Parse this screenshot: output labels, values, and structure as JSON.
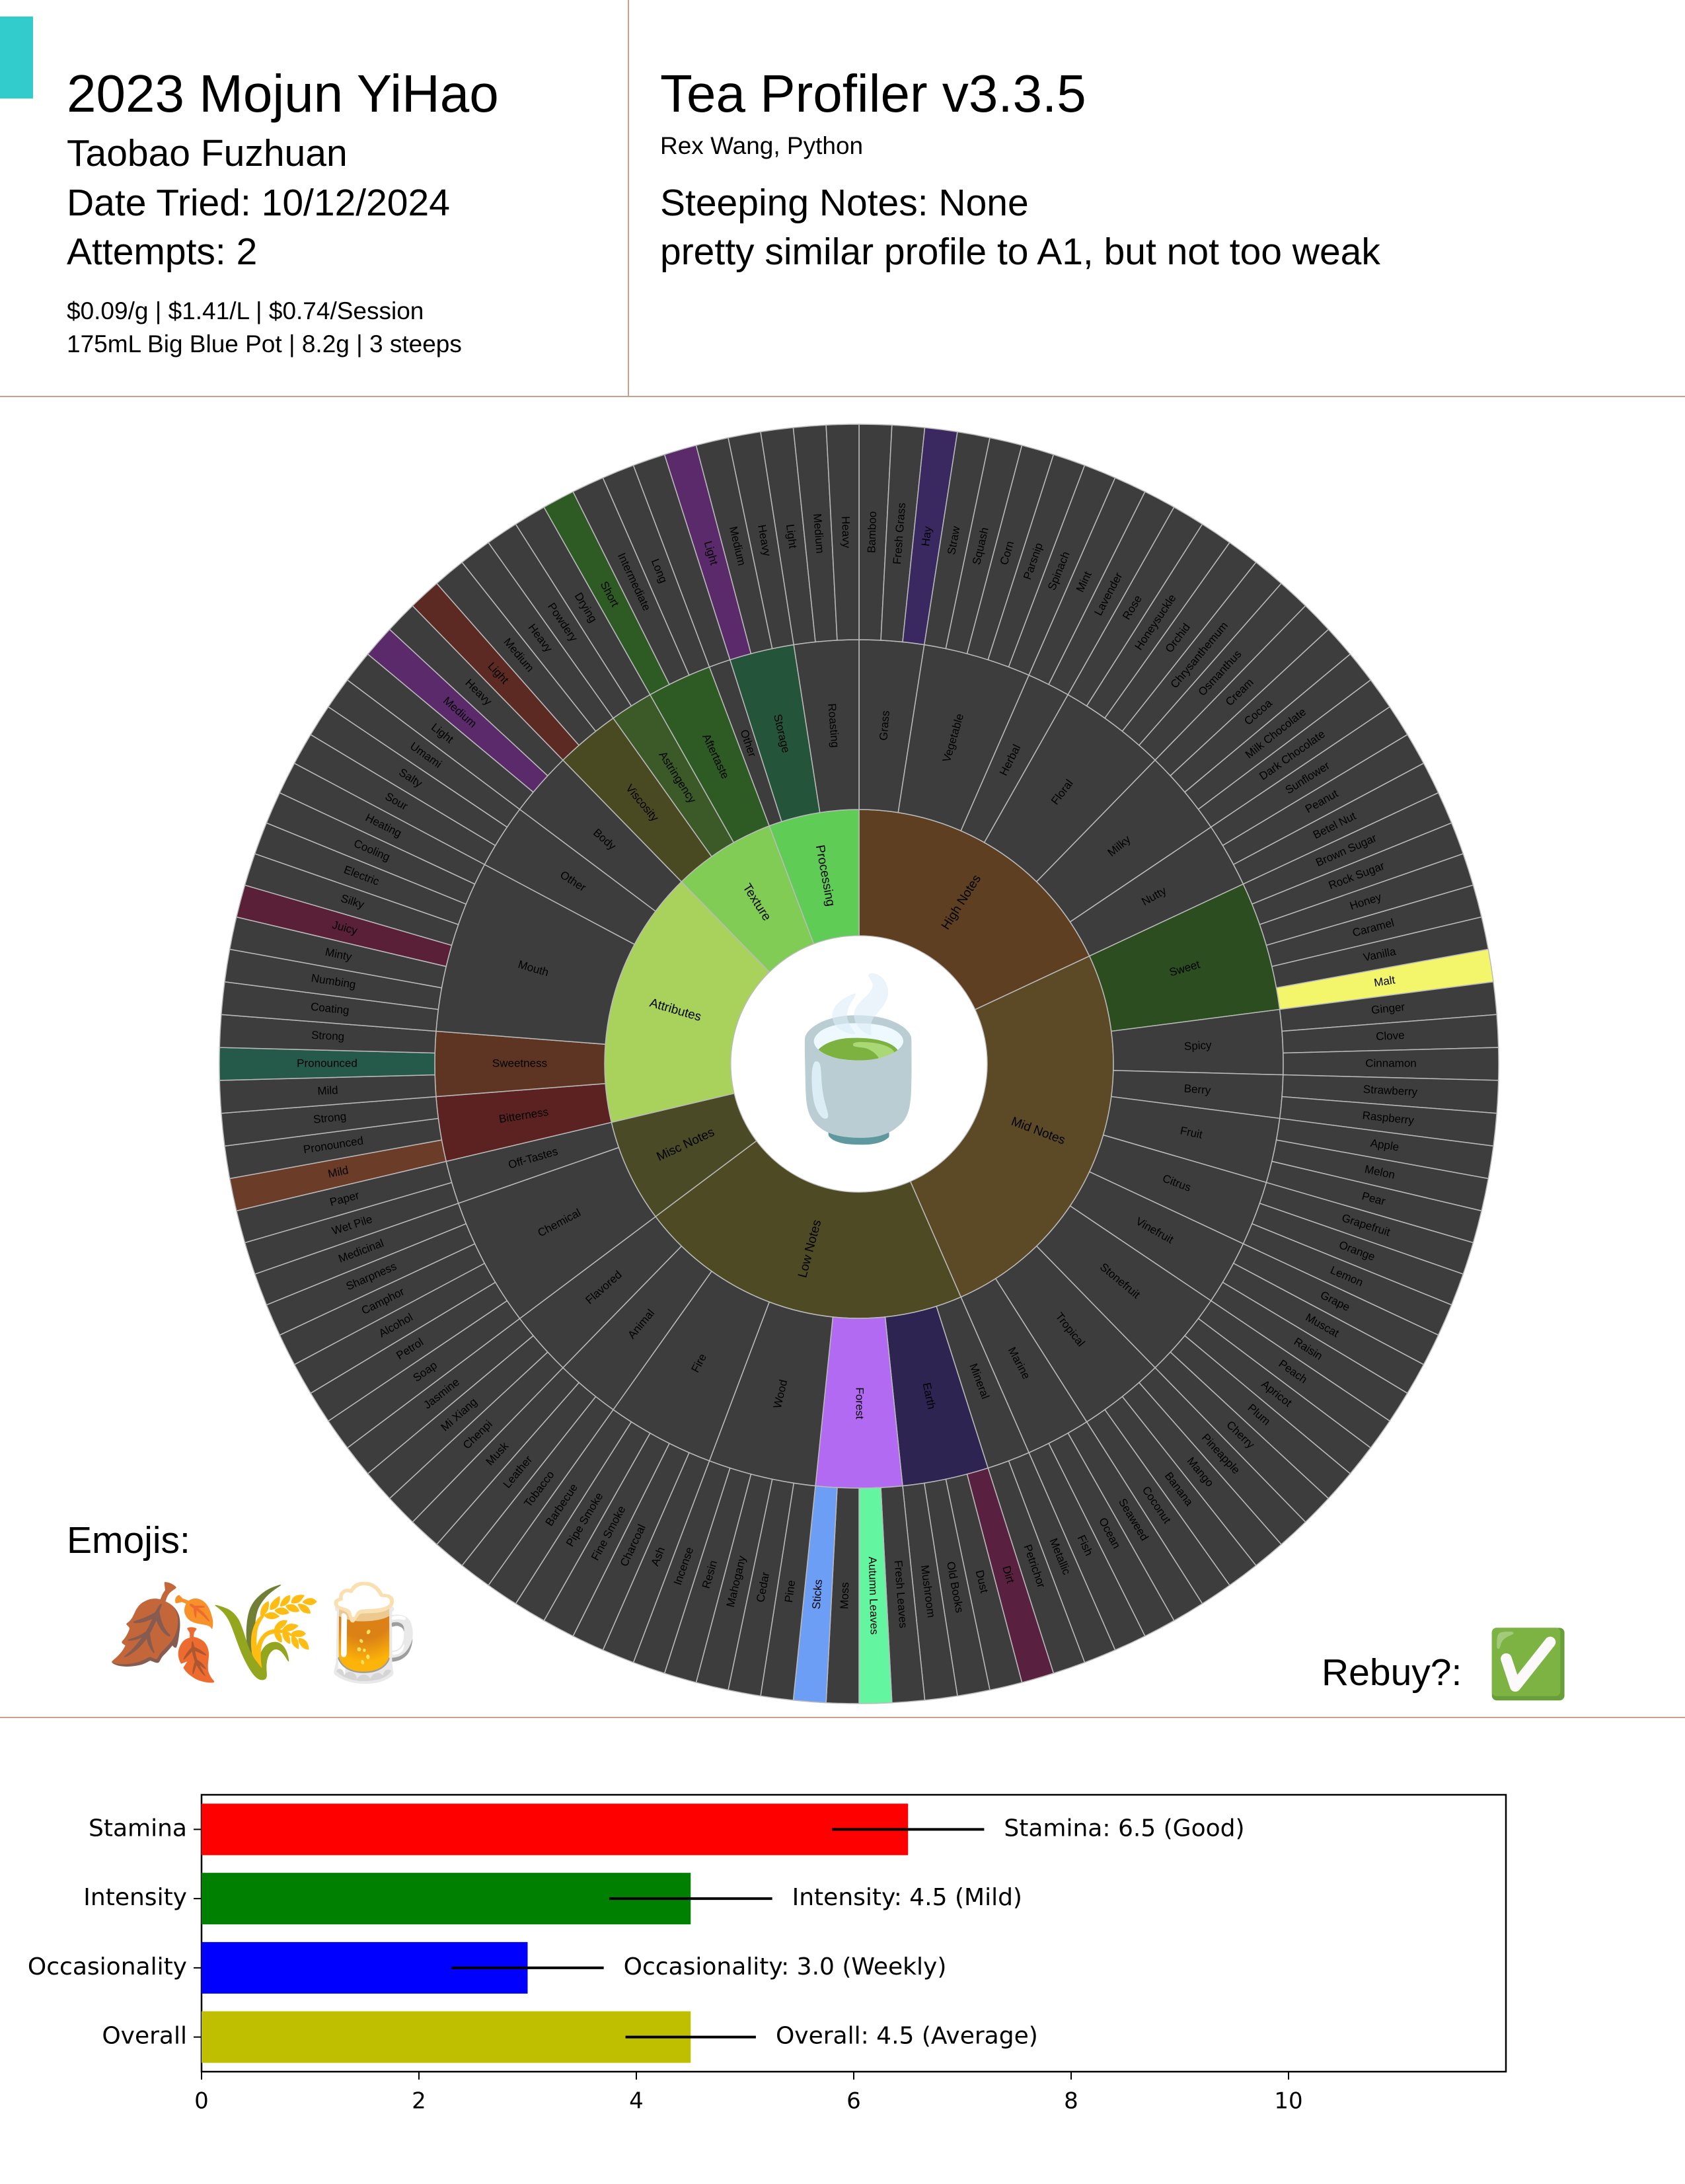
{
  "header": {
    "title": "2023 Mojun YiHao",
    "subtitle": "Taobao Fuzhuan",
    "date": "Date Tried: 10/12/2024",
    "attempts": "Attempts: 2",
    "price": "$0.09/g | $1.41/L | $0.74/Session",
    "setup": "175mL Big Blue Pot | 8.2g | 3 steeps",
    "app": "Tea Profiler v3.3.5",
    "author": "Rex Wang, Python",
    "steeping": "Steeping Notes: None",
    "note": "pretty similar profile to A1, but not too weak"
  },
  "wheel": {
    "center_emoji": "🍵",
    "default_color": "#3d3d3d",
    "nodes": [
      {
        "name": "High Notes",
        "color": "#5e3f22",
        "children": [
          {
            "name": "Grass",
            "children": [
              {
                "name": "Bamboo"
              },
              {
                "name": "Fresh Grass"
              },
              {
                "name": "Hay",
                "color": "#3a2860"
              }
            ]
          },
          {
            "name": "Vegetable",
            "children": [
              {
                "name": "Straw"
              },
              {
                "name": "Squash"
              },
              {
                "name": "Corn"
              },
              {
                "name": "Parsnip"
              },
              {
                "name": "Spinach"
              }
            ]
          },
          {
            "name": "Herbal",
            "children": [
              {
                "name": "Mint"
              },
              {
                "name": "Lavender"
              }
            ]
          },
          {
            "name": "Floral",
            "children": [
              {
                "name": "Rose"
              },
              {
                "name": "Honeysuckle"
              },
              {
                "name": "Orchid"
              },
              {
                "name": "Chrysanthemum"
              },
              {
                "name": "Osmanthus"
              }
            ]
          },
          {
            "name": "Milky",
            "children": [
              {
                "name": "Cream"
              },
              {
                "name": "Cocoa"
              },
              {
                "name": "Milk Chocolate"
              },
              {
                "name": "Dark Chocolate"
              }
            ]
          },
          {
            "name": "Nutty",
            "children": [
              {
                "name": "Sunflower"
              },
              {
                "name": "Peanut"
              },
              {
                "name": "Betel Nut"
              }
            ]
          }
        ]
      },
      {
        "name": "Mid Notes",
        "color": "#5c4a26",
        "children": [
          {
            "name": "Sweet",
            "color": "#2b4d1f",
            "children": [
              {
                "name": "Brown Sugar"
              },
              {
                "name": "Rock Sugar"
              },
              {
                "name": "Honey"
              },
              {
                "name": "Caramel"
              },
              {
                "name": "Vanilla"
              },
              {
                "name": "Malt",
                "color": "#f3f56a"
              }
            ]
          },
          {
            "name": "Spicy",
            "children": [
              {
                "name": "Ginger"
              },
              {
                "name": "Clove"
              },
              {
                "name": "Cinnamon"
              }
            ]
          },
          {
            "name": "Berry",
            "children": [
              {
                "name": "Strawberry"
              },
              {
                "name": "Raspberry"
              }
            ]
          },
          {
            "name": "Fruit",
            "children": [
              {
                "name": "Apple"
              },
              {
                "name": "Melon"
              },
              {
                "name": "Pear"
              }
            ]
          },
          {
            "name": "Citrus",
            "children": [
              {
                "name": "Grapefruit"
              },
              {
                "name": "Orange"
              },
              {
                "name": "Lemon"
              }
            ]
          },
          {
            "name": "Vinefruit",
            "children": [
              {
                "name": "Grape"
              },
              {
                "name": "Muscat"
              },
              {
                "name": "Raisin"
              }
            ]
          },
          {
            "name": "Stonefruit",
            "children": [
              {
                "name": "Peach"
              },
              {
                "name": "Apricot"
              },
              {
                "name": "Plum"
              },
              {
                "name": "Cherry"
              }
            ]
          },
          {
            "name": "Tropical",
            "children": [
              {
                "name": "Pineapple"
              },
              {
                "name": "Mango"
              },
              {
                "name": "Banana"
              },
              {
                "name": "Coconut"
              }
            ]
          },
          {
            "name": "Marine",
            "children": [
              {
                "name": "Seaweed"
              },
              {
                "name": "Ocean"
              },
              {
                "name": "Fish"
              }
            ]
          }
        ]
      },
      {
        "name": "Low Notes",
        "color": "#4e4a24",
        "children": [
          {
            "name": "Mineral",
            "children": [
              {
                "name": "Metallic"
              },
              {
                "name": "Petrichor"
              }
            ]
          },
          {
            "name": "Earth",
            "color": "#2e2452",
            "children": [
              {
                "name": "Dirt",
                "color": "#5a2040"
              },
              {
                "name": "Dust"
              },
              {
                "name": "Old Books"
              },
              {
                "name": "Mushroom"
              }
            ]
          },
          {
            "name": "Forest",
            "color": "#b26af2",
            "children": [
              {
                "name": "Fresh Leaves"
              },
              {
                "name": "Autumn Leaves",
                "color": "#63f5a0"
              },
              {
                "name": "Moss"
              },
              {
                "name": "Sticks",
                "color": "#6d9ef5"
              }
            ]
          },
          {
            "name": "Wood",
            "children": [
              {
                "name": "Pine"
              },
              {
                "name": "Cedar"
              },
              {
                "name": "Mahogany"
              },
              {
                "name": "Resin"
              },
              {
                "name": "Incense"
              }
            ]
          },
          {
            "name": "Fire",
            "children": [
              {
                "name": "Ash"
              },
              {
                "name": "Charcoal"
              },
              {
                "name": "Fine Smoke"
              },
              {
                "name": "Pipe Smoke"
              },
              {
                "name": "Barbecue"
              }
            ]
          },
          {
            "name": "Animal",
            "children": [
              {
                "name": "Tobacco"
              },
              {
                "name": "Leather"
              },
              {
                "name": "Musk"
              }
            ]
          },
          {
            "name": "Flavored",
            "children": [
              {
                "name": "Chenpi"
              },
              {
                "name": "Mi Xiang"
              },
              {
                "name": "Jasmine"
              }
            ]
          }
        ]
      },
      {
        "name": "Misc Notes",
        "color": "#4a4a26",
        "children": [
          {
            "name": "Chemical",
            "children": [
              {
                "name": "Soap"
              },
              {
                "name": "Petrol"
              },
              {
                "name": "Alcohol"
              },
              {
                "name": "Camphor"
              },
              {
                "name": "Sharpness"
              },
              {
                "name": "Medicinal"
              }
            ]
          },
          {
            "name": "Off-Tastes",
            "children": [
              {
                "name": "Wet Pile"
              },
              {
                "name": "Paper"
              }
            ]
          }
        ]
      },
      {
        "name": "Attributes",
        "color": "#a8d25c",
        "children": [
          {
            "name": "Bitterness",
            "color": "#5c2222",
            "children": [
              {
                "name": "Mild",
                "color": "#6b3c28"
              },
              {
                "name": "Pronounced"
              },
              {
                "name": "Strong"
              }
            ]
          },
          {
            "name": "Sweetness",
            "color": "#5e3422",
            "children": [
              {
                "name": "Mild"
              },
              {
                "name": "Pronounced",
                "color": "#25594a"
              },
              {
                "name": "Strong"
              }
            ]
          },
          {
            "name": "Mouth",
            "children": [
              {
                "name": "Coating"
              },
              {
                "name": "Numbing"
              },
              {
                "name": "Minty"
              },
              {
                "name": "Juicy",
                "color": "#5a2038"
              },
              {
                "name": "Silky"
              },
              {
                "name": "Electric"
              },
              {
                "name": "Cooling"
              },
              {
                "name": "Heating"
              }
            ]
          },
          {
            "name": "Other",
            "children": [
              {
                "name": "Sour"
              },
              {
                "name": "Salty"
              },
              {
                "name": "Umami"
              }
            ]
          },
          {
            "name": "Body",
            "children": [
              {
                "name": "Light"
              },
              {
                "name": "Medium",
                "color": "#5a2a6a"
              },
              {
                "name": "Heavy"
              }
            ]
          }
        ]
      },
      {
        "name": "Texture",
        "color": "#80cc55",
        "children": [
          {
            "name": "Viscosity",
            "color": "#4a4a22",
            "children": [
              {
                "name": "Light",
                "color": "#5c2a22"
              },
              {
                "name": "Medium"
              },
              {
                "name": "Heavy"
              }
            ]
          },
          {
            "name": "Astringency",
            "color": "#3b5a27",
            "children": [
              {
                "name": "Powdery"
              },
              {
                "name": "Drying"
              }
            ]
          },
          {
            "name": "Aftertaste",
            "color": "#2e5a24",
            "children": [
              {
                "name": "Short",
                "color": "#2e5a24"
              },
              {
                "name": "Intermediate"
              },
              {
                "name": "Long"
              }
            ]
          }
        ]
      },
      {
        "name": "Processing",
        "color": "#5fcc55",
        "children": [
          {
            "name": "Other"
          },
          {
            "name": "Storage",
            "color": "#24553a",
            "children": [
              {
                "name": "Light",
                "color": "#5a2a6a"
              },
              {
                "name": "Medium"
              },
              {
                "name": "Heavy"
              }
            ]
          },
          {
            "name": "Roasting",
            "children": [
              {
                "name": "Light"
              },
              {
                "name": "Medium"
              },
              {
                "name": "Heavy"
              }
            ]
          }
        ]
      }
    ]
  },
  "emojis": {
    "label": "Emojis:",
    "items": [
      "🍂",
      "🌾",
      "🍺"
    ]
  },
  "rebuy": {
    "label": "Rebuy?:",
    "value": "✅"
  },
  "chart_data": {
    "type": "bar",
    "orientation": "horizontal",
    "categories": [
      "Stamina",
      "Intensity",
      "Occasionality",
      "Overall"
    ],
    "values": [
      6.5,
      4.5,
      3.0,
      4.5
    ],
    "errors": [
      0.7,
      0.75,
      0.7,
      0.6
    ],
    "value_labels": [
      "Stamina: 6.5 (Good)",
      "Intensity: 4.5 (Mild)",
      "Occasionality: 3.0 (Weekly)",
      "Overall: 4.5 (Average)"
    ],
    "colors": [
      "#ff0000",
      "#008000",
      "#0000ff",
      "#bfbf00"
    ],
    "xlim": [
      0,
      12
    ],
    "xticks": [
      0,
      2,
      4,
      6,
      8,
      10
    ]
  }
}
